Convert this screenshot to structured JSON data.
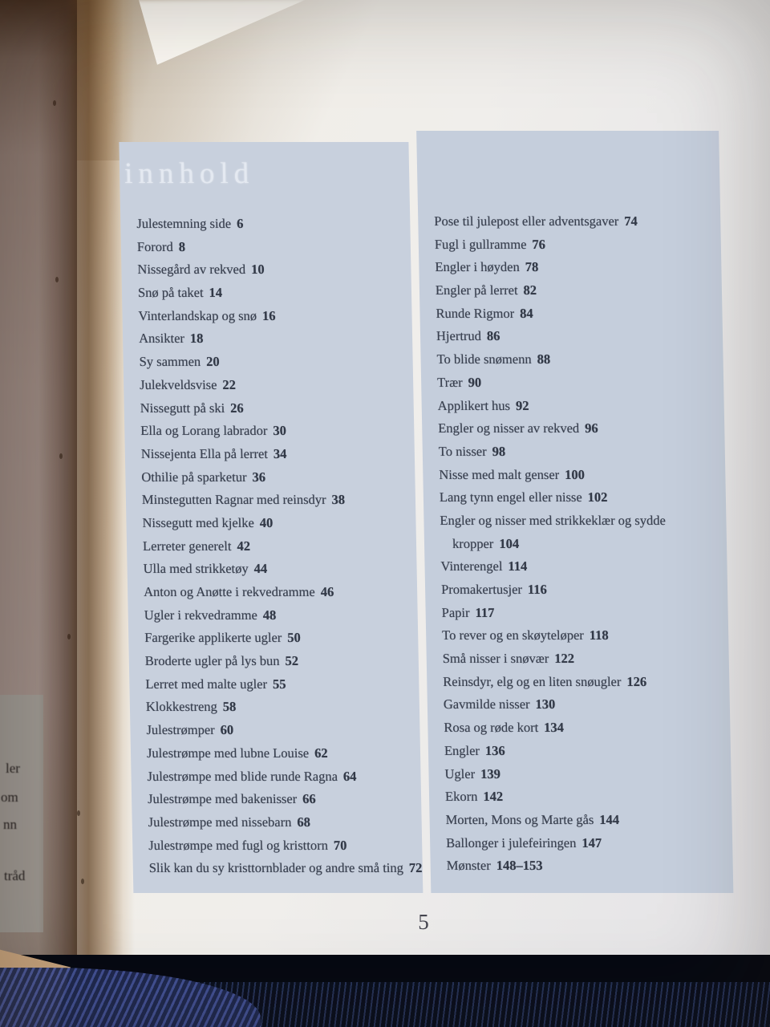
{
  "book_page": {
    "title": "innhold",
    "page_number": "5",
    "toc_left": [
      {
        "label": "Julestemning side",
        "page": "6"
      },
      {
        "label": "Forord",
        "page": "8"
      },
      {
        "label": "Nissegård av rekved",
        "page": "10"
      },
      {
        "label": "Snø på taket",
        "page": "14"
      },
      {
        "label": "Vinterlandskap og snø",
        "page": "16"
      },
      {
        "label": "Ansikter",
        "page": "18"
      },
      {
        "label": "Sy sammen",
        "page": "20"
      },
      {
        "label": "Julekveldsvise",
        "page": "22"
      },
      {
        "label": "Nissegutt på ski",
        "page": "26"
      },
      {
        "label": "Ella og Lorang labrador",
        "page": "30"
      },
      {
        "label": "Nissejenta Ella på lerret",
        "page": "34"
      },
      {
        "label": "Othilie på sparketur",
        "page": "36"
      },
      {
        "label": "Minstegutten Ragnar med reinsdyr",
        "page": "38"
      },
      {
        "label": "Nissegutt med kjelke",
        "page": "40"
      },
      {
        "label": "Lerreter generelt",
        "page": "42"
      },
      {
        "label": "Ulla med strikketøy",
        "page": "44"
      },
      {
        "label": "Anton og Anøtte i rekvedramme",
        "page": "46"
      },
      {
        "label": "Ugler i rekvedramme",
        "page": "48"
      },
      {
        "label": "Fargerike applikerte ugler",
        "page": "50"
      },
      {
        "label": "Broderte ugler på lys bun",
        "page": "52"
      },
      {
        "label": "Lerret med malte ugler",
        "page": "55"
      },
      {
        "label": "Klokkestreng",
        "page": "58"
      },
      {
        "label": "Julestrømper",
        "page": "60"
      },
      {
        "label": "Julestrømpe med lubne Louise",
        "page": "62"
      },
      {
        "label": "Julestrømpe med blide runde Ragna",
        "page": "64"
      },
      {
        "label": "Julestrømpe med bakenisser",
        "page": "66"
      },
      {
        "label": "Julestrømpe med nissebarn",
        "page": "68"
      },
      {
        "label": "Julestrømpe med fugl og kristtorn",
        "page": "70"
      },
      {
        "label": "Slik kan du sy kristtornblader og andre små ting",
        "page": "72"
      }
    ],
    "toc_right": [
      {
        "label": "Pose til julepost eller adventsgaver",
        "page": "74"
      },
      {
        "label": "Fugl i gullramme",
        "page": "76"
      },
      {
        "label": "Engler i høyden",
        "page": "78"
      },
      {
        "label": "Engler på lerret",
        "page": "82"
      },
      {
        "label": "Runde Rigmor",
        "page": "84"
      },
      {
        "label": "Hjertrud",
        "page": "86"
      },
      {
        "label": "To blide snømenn",
        "page": "88"
      },
      {
        "label": "Trær",
        "page": "90"
      },
      {
        "label": "Applikert hus",
        "page": "92"
      },
      {
        "label": "Engler og nisser av rekved",
        "page": "96"
      },
      {
        "label": "To nisser",
        "page": "98"
      },
      {
        "label": "Nisse med malt genser",
        "page": "100"
      },
      {
        "label": "Lang tynn engel eller nisse",
        "page": "102"
      },
      {
        "label": "Engler og nisser med strikkeklær og sydde",
        "page": ""
      },
      {
        "label": "kropper",
        "page": "104",
        "indent": true
      },
      {
        "label": "Vinterengel",
        "page": "114"
      },
      {
        "label": "Promakertusjer",
        "page": "116"
      },
      {
        "label": "Papir",
        "page": "117"
      },
      {
        "label": "To rever og en skøyteløper",
        "page": "118"
      },
      {
        "label": "Små nisser i snøvær",
        "page": "122"
      },
      {
        "label": "Reinsdyr, elg og en liten snøugler",
        "page": "126"
      },
      {
        "label": "Gavmilde nisser",
        "page": "130"
      },
      {
        "label": "Rosa og røde kort",
        "page": "134"
      },
      {
        "label": "Engler",
        "page": "136"
      },
      {
        "label": "Ugler",
        "page": "139"
      },
      {
        "label": "Ekorn",
        "page": "142"
      },
      {
        "label": "Morten, Mons og Marte gås",
        "page": "144"
      },
      {
        "label": "Ballonger i julefeiringen",
        "page": "147"
      },
      {
        "label": "Mønster",
        "page": "148–153"
      }
    ],
    "left_page_fragments": [
      "ler",
      "om",
      "nn",
      "tråd"
    ]
  },
  "colors": {
    "panel": "#c8d0dd",
    "page": "#f0eeea",
    "ink": "#3a4150",
    "fabric_navy": "#0b1020",
    "knit_blue": "#45549a",
    "spine_brown": "#603e1e"
  }
}
